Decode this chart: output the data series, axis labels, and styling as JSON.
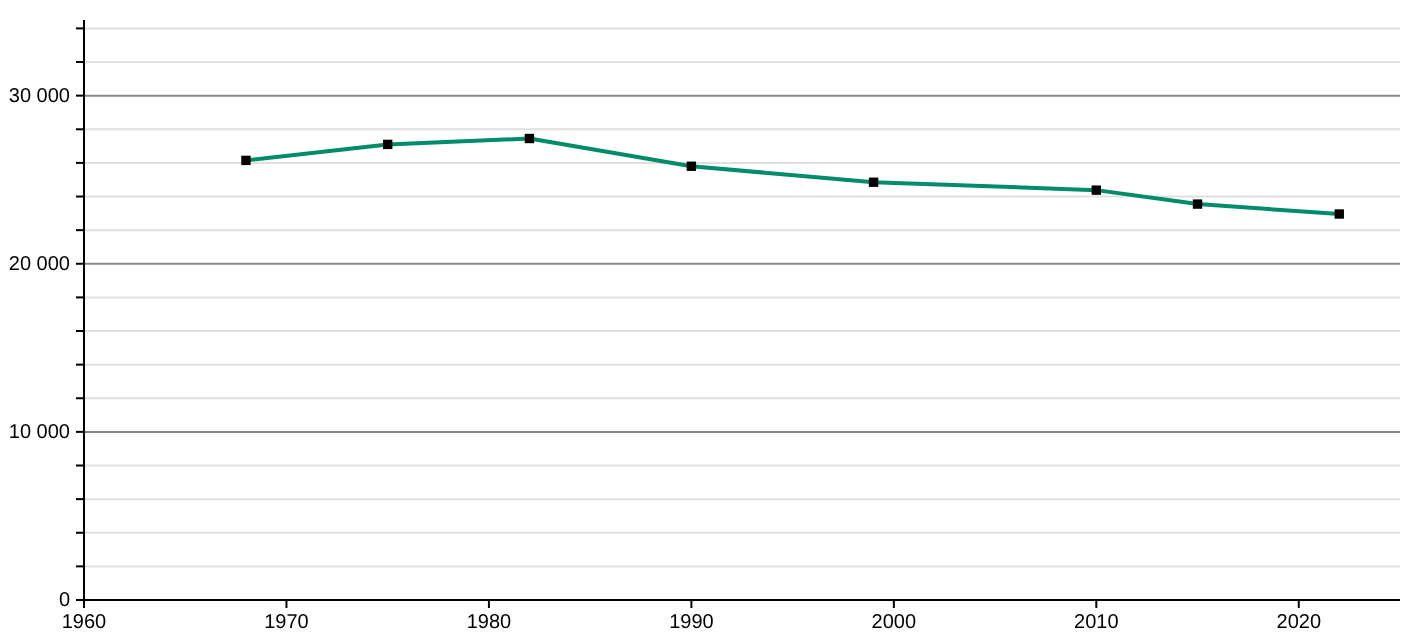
{
  "chart_data": {
    "type": "line",
    "x": [
      1968,
      1975,
      1982,
      1990,
      1999,
      2010,
      2015,
      2022
    ],
    "series": [
      {
        "color": "#008c6a",
        "values": [
          26150,
          27100,
          27450,
          25800,
          24850,
          24380,
          23550,
          22960
        ]
      }
    ],
    "xlim": [
      1960,
      2025
    ],
    "xticks": [
      1960,
      1970,
      1980,
      1990,
      2000,
      2010,
      2020
    ],
    "ylim": [
      0,
      34500
    ],
    "yticks": [
      {
        "value": 0,
        "label": "0"
      },
      {
        "value": 2000,
        "label": null
      },
      {
        "value": 4000,
        "label": null
      },
      {
        "value": 6000,
        "label": null
      },
      {
        "value": 8000,
        "label": null
      },
      {
        "value": 10000,
        "label": "10 000"
      },
      {
        "value": 12000,
        "label": null
      },
      {
        "value": 14000,
        "label": null
      },
      {
        "value": 16000,
        "label": null
      },
      {
        "value": 18000,
        "label": null
      },
      {
        "value": 20000,
        "label": "20 000"
      },
      {
        "value": 22000,
        "label": null
      },
      {
        "value": 24000,
        "label": null
      },
      {
        "value": 26000,
        "label": null
      },
      {
        "value": 28000,
        "label": null
      },
      {
        "value": 30000,
        "label": "30 000"
      },
      {
        "value": 32000,
        "label": null
      },
      {
        "value": 34000,
        "label": null
      }
    ],
    "grid": "y",
    "marker": "square",
    "line_style": "solid"
  }
}
